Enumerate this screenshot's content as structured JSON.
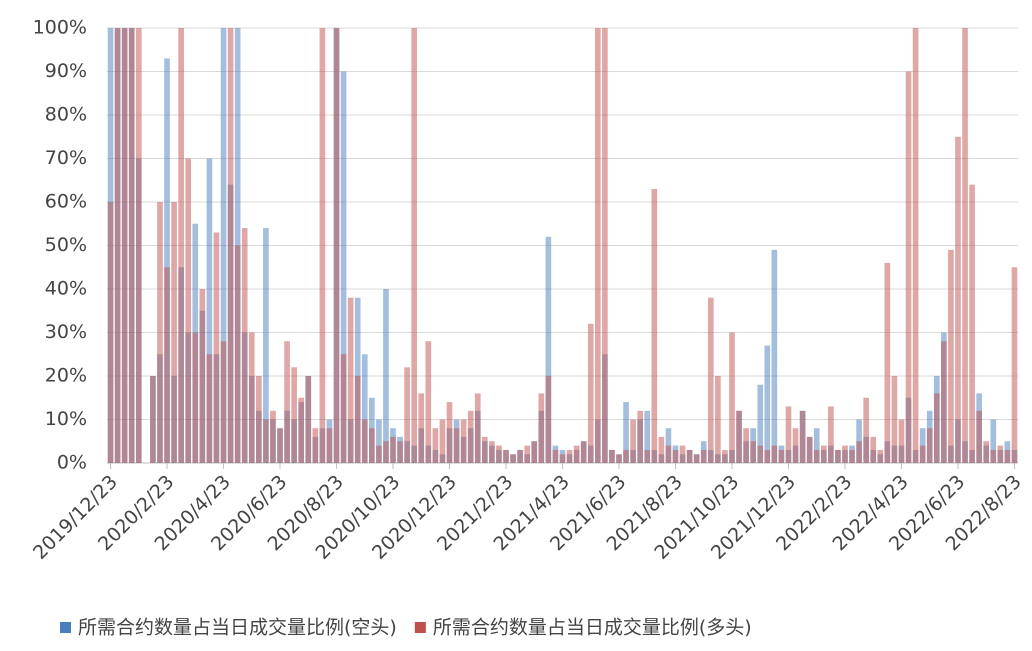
{
  "chart_data": {
    "type": "bar",
    "categories": [
      "2019/12/23",
      null,
      null,
      null,
      null,
      null,
      null,
      null,
      "2020/2/23",
      null,
      null,
      null,
      null,
      null,
      null,
      null,
      "2020/4/23",
      null,
      null,
      null,
      null,
      null,
      null,
      null,
      "2020/6/23",
      null,
      null,
      null,
      null,
      null,
      null,
      null,
      "2020/8/23",
      null,
      null,
      null,
      null,
      null,
      null,
      null,
      "2020/10/23",
      null,
      null,
      null,
      null,
      null,
      null,
      null,
      "2020/12/23",
      null,
      null,
      null,
      null,
      null,
      null,
      null,
      "2021/2/23",
      null,
      null,
      null,
      null,
      null,
      null,
      null,
      "2021/4/23",
      null,
      null,
      null,
      null,
      null,
      null,
      null,
      "2021/6/23",
      null,
      null,
      null,
      null,
      null,
      null,
      null,
      "2021/8/23",
      null,
      null,
      null,
      null,
      null,
      null,
      null,
      "2021/10/23",
      null,
      null,
      null,
      null,
      null,
      null,
      null,
      "2021/12/23",
      null,
      null,
      null,
      null,
      null,
      null,
      null,
      "2022/2/23",
      null,
      null,
      null,
      null,
      null,
      null,
      null,
      "2022/4/23",
      null,
      null,
      null,
      null,
      null,
      null,
      null,
      "2022/6/23",
      null,
      null,
      null,
      null,
      null,
      null,
      null,
      "2022/8/23"
    ],
    "series": [
      {
        "name": "所需合约数量占当日成交量比例(空头)",
        "color": "#4a7ebb",
        "values": [
          100,
          100,
          100,
          100,
          70,
          0,
          20,
          25,
          93,
          20,
          45,
          30,
          55,
          35,
          70,
          25,
          100,
          64,
          100,
          30,
          20,
          12,
          54,
          10,
          8,
          12,
          10,
          14,
          20,
          6,
          8,
          10,
          100,
          90,
          10,
          38,
          25,
          15,
          10,
          40,
          8,
          6,
          5,
          4,
          8,
          4,
          3,
          2,
          8,
          10,
          6,
          8,
          12,
          5,
          4,
          3,
          3,
          2,
          3,
          2,
          5,
          12,
          52,
          4,
          3,
          2,
          3,
          5,
          4,
          10,
          25,
          3,
          2,
          14,
          3,
          10,
          12,
          3,
          2,
          8,
          4,
          2,
          3,
          2,
          5,
          3,
          2,
          2,
          3,
          12,
          5,
          8,
          18,
          27,
          49,
          4,
          3,
          4,
          12,
          6,
          8,
          3,
          4,
          3,
          3,
          4,
          10,
          6,
          3,
          2,
          5,
          4,
          4,
          15,
          3,
          8,
          12,
          20,
          30,
          4,
          10,
          5,
          3,
          16,
          4,
          10,
          3,
          5,
          3
        ]
      },
      {
        "name": "所需合约数量占当日成交量比例(多头)",
        "color": "#c0504d",
        "values": [
          60,
          100,
          100,
          100,
          100,
          0,
          20,
          60,
          45,
          60,
          100,
          70,
          30,
          40,
          25,
          53,
          28,
          100,
          50,
          54,
          30,
          20,
          10,
          12,
          8,
          28,
          22,
          15,
          20,
          8,
          100,
          8,
          100,
          25,
          38,
          20,
          10,
          8,
          4,
          5,
          6,
          5,
          22,
          100,
          16,
          28,
          8,
          10,
          14,
          8,
          10,
          12,
          16,
          6,
          5,
          4,
          3,
          2,
          3,
          4,
          5,
          16,
          20,
          3,
          2,
          3,
          4,
          5,
          32,
          100,
          100,
          3,
          2,
          3,
          10,
          12,
          3,
          63,
          6,
          4,
          3,
          4,
          3,
          2,
          3,
          38,
          20,
          3,
          30,
          12,
          8,
          5,
          4,
          3,
          4,
          3,
          13,
          8,
          12,
          6,
          3,
          4,
          13,
          3,
          4,
          3,
          5,
          15,
          6,
          3,
          46,
          20,
          10,
          90,
          100,
          4,
          8,
          16,
          28,
          49,
          75,
          100,
          64,
          12,
          5,
          3,
          4,
          3,
          45
        ]
      }
    ],
    "ylim": [
      0,
      100
    ],
    "yticks": [
      {
        "value": 0,
        "label": "0%"
      },
      {
        "value": 10,
        "label": "10%"
      },
      {
        "value": 20,
        "label": "20%"
      },
      {
        "value": 30,
        "label": "30%"
      },
      {
        "value": 40,
        "label": "40%"
      },
      {
        "value": 50,
        "label": "50%"
      },
      {
        "value": 60,
        "label": "60%"
      },
      {
        "value": 70,
        "label": "70%"
      },
      {
        "value": 80,
        "label": "80%"
      },
      {
        "value": 90,
        "label": "90%"
      },
      {
        "value": 100,
        "label": "100%"
      }
    ],
    "grid": true,
    "legend": "bottom"
  }
}
